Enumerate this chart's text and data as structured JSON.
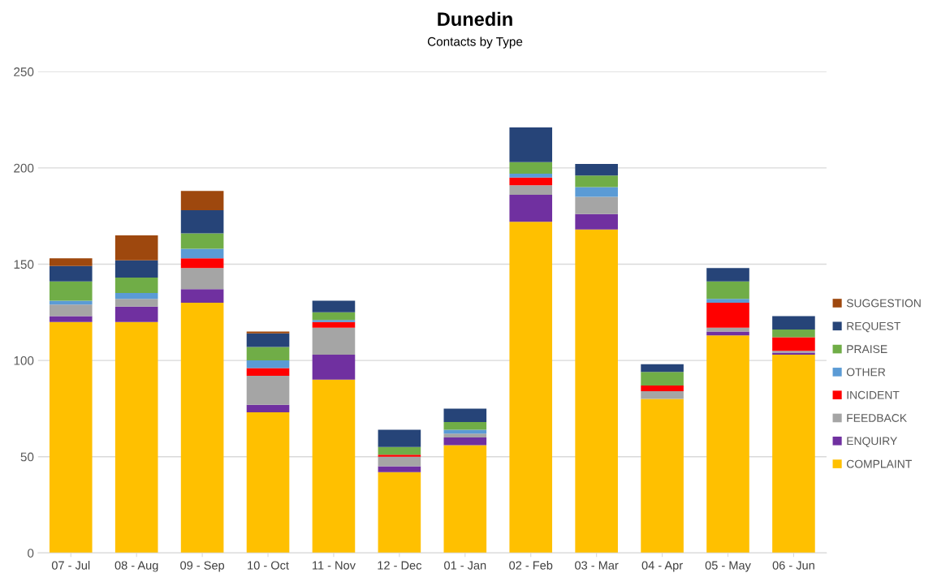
{
  "chart_data": {
    "type": "bar",
    "stacked": true,
    "title": "Dunedin",
    "subtitle": "Contacts by Type",
    "categories": [
      "07 - Jul",
      "08 - Aug",
      "09 - Sep",
      "10 - Oct",
      "11 - Nov",
      "12 - Dec",
      "01 - Jan",
      "02 - Feb",
      "03 - Mar",
      "04 - Apr",
      "05 - May",
      "06 - Jun"
    ],
    "series": [
      {
        "name": "COMPLAINT",
        "color": "#ffc000",
        "values": [
          120,
          120,
          130,
          73,
          90,
          42,
          56,
          172,
          168,
          80,
          113,
          103
        ]
      },
      {
        "name": "ENQUIRY",
        "color": "#7030a0",
        "values": [
          3,
          8,
          7,
          4,
          13,
          3,
          4,
          14,
          8,
          0,
          2,
          1
        ]
      },
      {
        "name": "FEEDBACK",
        "color": "#a5a5a5",
        "values": [
          6,
          4,
          11,
          15,
          14,
          5,
          2,
          5,
          9,
          4,
          2,
          1
        ]
      },
      {
        "name": "INCIDENT",
        "color": "#ff0000",
        "values": [
          0,
          0,
          5,
          4,
          3,
          1,
          0,
          4,
          0,
          3,
          13,
          7
        ]
      },
      {
        "name": "OTHER",
        "color": "#5b9bd5",
        "values": [
          2,
          3,
          5,
          4,
          1,
          0,
          2,
          2,
          5,
          0,
          2,
          0
        ]
      },
      {
        "name": "PRAISE",
        "color": "#70ad47",
        "values": [
          10,
          8,
          8,
          7,
          4,
          4,
          4,
          6,
          6,
          7,
          9,
          4
        ]
      },
      {
        "name": "REQUEST",
        "color": "#264478",
        "values": [
          8,
          9,
          12,
          7,
          6,
          9,
          7,
          18,
          6,
          4,
          7,
          7
        ]
      },
      {
        "name": "SUGGESTION",
        "color": "#9e480e",
        "values": [
          4,
          13,
          10,
          1,
          0,
          0,
          0,
          0,
          0,
          0,
          0,
          0
        ]
      }
    ],
    "ylim": [
      0,
      250
    ],
    "yticks": [
      0,
      50,
      100,
      150,
      200,
      250
    ],
    "grid": "y",
    "legend": "right"
  }
}
